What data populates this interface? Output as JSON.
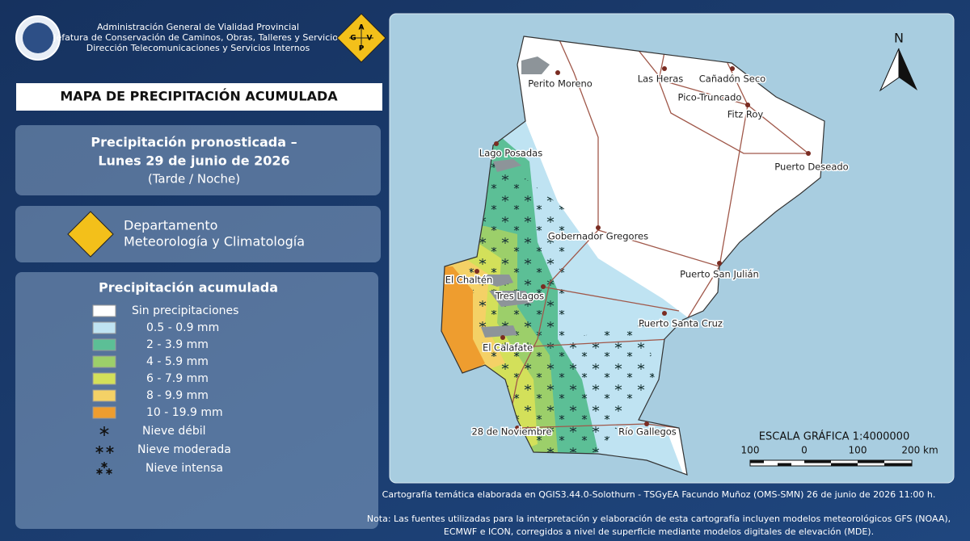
{
  "header": {
    "lines": [
      "Administración General de Vialidad Provincial",
      "Jefatura de Conservación de Caminos, Obras, Talleres y Servicios",
      "Dirección Telecomunicaciones y Servicios Internos"
    ],
    "logo_letters": [
      "A",
      "G",
      "V",
      "P"
    ]
  },
  "title": "MAPA DE PRECIPITACIÓN ACUMULADA",
  "forecast": {
    "line1": "Precipitación pronosticada –",
    "line2": "Lunes 29 de junio de 2026",
    "line3": "(Tarde / Noche)"
  },
  "department": {
    "line1": "Departamento",
    "line2": "Meteorología y Climatología"
  },
  "legend": {
    "title": "Precipitación acumulada",
    "items": [
      {
        "label": "Sin precipitaciones",
        "color": "#ffffff"
      },
      {
        "label": "0.5 - 0.9 mm",
        "color": "#bfe3f2"
      },
      {
        "label": "2 - 3.9 mm",
        "color": "#5cbf96"
      },
      {
        "label": "4 - 5.9 mm",
        "color": "#9ccf6a"
      },
      {
        "label": "6 - 7.9 mm",
        "color": "#d3e05a"
      },
      {
        "label": "8 - 9.9 mm",
        "color": "#f4d166"
      },
      {
        "label": "10 - 19.9 mm",
        "color": "#ee9d2f"
      }
    ],
    "snow": [
      "Nieve débil",
      "Nieve moderada",
      "Nieve intensa"
    ]
  },
  "map": {
    "north": "N",
    "places": [
      "Perito Moreno",
      "Las Heras",
      "Cañadón Seco",
      "Pico-Truncado",
      "Fitz Roy",
      "Puerto Deseado",
      "Lago Posadas",
      "Gobernador Gregores",
      "Puerto San Julián",
      "El Chaltén",
      "Tres Lagos",
      "Puerto Santa Cruz",
      "El Calafate",
      "28 de Noviembre",
      "Río Gallegos"
    ],
    "scale": {
      "title": "ESCALA GRÁFICA 1:4000000",
      "labels": [
        "100",
        "0",
        "100",
        "200 km"
      ]
    }
  },
  "footer": {
    "credit": "Cartografía temática elaborada en QGIS3.44.0-Solothurn - TSGyEA Facundo Muñoz (OMS-SMN) 26 de junio de 2026 11:00 h.",
    "note_line1": "Nota: Las fuentes utilizadas para la interpretación y elaboración de esta cartografía incluyen modelos meteorológicos GFS (NOAA),",
    "note_line2": "ECMWF e ICON, corregidos a nivel de superficie mediante modelos digitales de elevación (MDE)."
  }
}
